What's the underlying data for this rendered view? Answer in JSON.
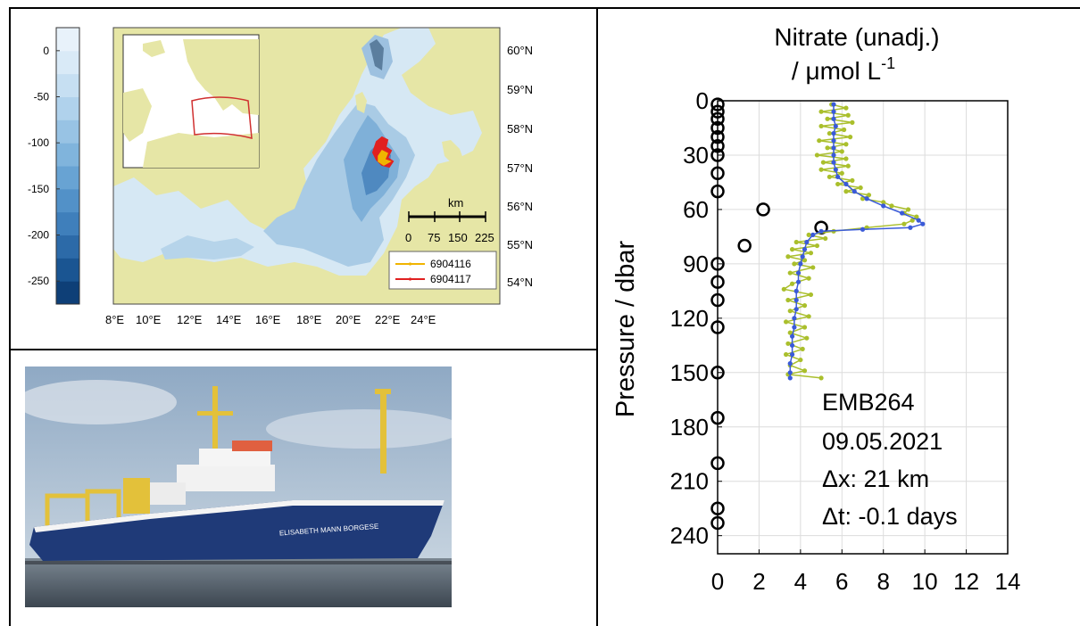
{
  "map": {
    "colorbar_ticks": [
      "0",
      "-50",
      "-100",
      "-150",
      "-200",
      "-250"
    ],
    "colorbar_values": [
      0,
      -50,
      -100,
      -150,
      -200,
      -250
    ],
    "colorbar_range": [
      -275,
      25
    ],
    "colorbar_colors": [
      "#0e3f77",
      "#1a5592",
      "#2c6aa8",
      "#3f7fbb",
      "#5291c8",
      "#68a3d3",
      "#80b4dc",
      "#98c3e4",
      "#b0d2ec",
      "#c6dff2",
      "#d9eaf7",
      "#e8f2fa"
    ],
    "lat_labels": [
      "60°N",
      "59°N",
      "58°N",
      "57°N",
      "56°N",
      "55°N",
      "54°N"
    ],
    "lon_labels": [
      "8°E",
      "10°E",
      "12°E",
      "14°E",
      "16°E",
      "18°E",
      "20°E",
      "22°E",
      "24°E"
    ],
    "scalebar_title": "km",
    "scalebar_ticks": [
      "0",
      "75",
      "150",
      "225"
    ],
    "legend": [
      {
        "label": "6904116",
        "color": "#f0b400"
      },
      {
        "label": "6904117",
        "color": "#e02020"
      }
    ],
    "land_color": "#e6e6a6",
    "water_color": "#d6e8f4"
  },
  "photo": {
    "ship_name": "ELISABETH MANN BORGESE",
    "hull_color": "#1f3a78",
    "sky_color": "#a9bfd4",
    "sea_color": "#5e6c78"
  },
  "profile": {
    "title_line1": "Nitrate (unadj.)",
    "title_line2": "/ μmol L",
    "title_sup": "-1",
    "ylabel": "Pressure / dbar",
    "annotations": [
      "EMB264",
      "09.05.2021",
      "Δx: 21 km",
      "Δt: -0.1 days"
    ]
  },
  "chart_data": {
    "type": "scatter",
    "title": "Nitrate (unadj.) / μmol L-1",
    "xlabel": "",
    "ylabel": "Pressure / dbar",
    "xlim": [
      0,
      14
    ],
    "ylim": [
      250,
      0
    ],
    "y_reversed": true,
    "grid": true,
    "xticks": [
      0,
      2,
      4,
      6,
      8,
      10,
      12,
      14
    ],
    "yticks": [
      0,
      30,
      60,
      90,
      120,
      150,
      180,
      210,
      240
    ],
    "series": [
      {
        "marker": "open-circle",
        "color": "#000000",
        "points": [
          [
            0,
            2
          ],
          [
            0,
            6
          ],
          [
            0,
            10
          ],
          [
            0,
            15
          ],
          [
            0,
            20
          ],
          [
            0,
            25
          ],
          [
            0,
            30
          ],
          [
            0,
            40
          ],
          [
            0,
            50
          ],
          [
            2.2,
            60
          ],
          [
            5,
            70
          ],
          [
            1.3,
            80
          ],
          [
            0,
            90
          ],
          [
            0,
            100
          ],
          [
            0,
            110
          ],
          [
            0,
            125
          ],
          [
            0,
            150
          ],
          [
            0,
            175
          ],
          [
            0,
            200
          ],
          [
            0,
            225
          ],
          [
            0,
            233
          ]
        ]
      },
      {
        "marker": "dot-line",
        "color": "#aabf2c",
        "points": [
          [
            5.5,
            2
          ],
          [
            6.2,
            4
          ],
          [
            5.0,
            6
          ],
          [
            6.3,
            8
          ],
          [
            5.3,
            10
          ],
          [
            6.5,
            12
          ],
          [
            5.0,
            14
          ],
          [
            6.1,
            16
          ],
          [
            5.4,
            18
          ],
          [
            6.4,
            20
          ],
          [
            4.9,
            22
          ],
          [
            6.2,
            24
          ],
          [
            5.3,
            26
          ],
          [
            6.0,
            28
          ],
          [
            4.8,
            30
          ],
          [
            6.2,
            32
          ],
          [
            5.1,
            34
          ],
          [
            6.3,
            36
          ],
          [
            5.0,
            38
          ],
          [
            6.0,
            40
          ],
          [
            5.4,
            42
          ],
          [
            6.5,
            44
          ],
          [
            5.8,
            46
          ],
          [
            6.9,
            48
          ],
          [
            6.2,
            50
          ],
          [
            7.3,
            52
          ],
          [
            7.0,
            54
          ],
          [
            8.0,
            56
          ],
          [
            8.4,
            58
          ],
          [
            9.2,
            60
          ],
          [
            9.0,
            62
          ],
          [
            9.6,
            64
          ],
          [
            9.4,
            66
          ],
          [
            9.0,
            68
          ],
          [
            7.2,
            70
          ],
          [
            5.6,
            72
          ],
          [
            4.4,
            74
          ],
          [
            5.2,
            76
          ],
          [
            3.8,
            78
          ],
          [
            4.8,
            80
          ],
          [
            3.6,
            82
          ],
          [
            4.5,
            84
          ],
          [
            3.4,
            86
          ],
          [
            4.2,
            88
          ],
          [
            3.7,
            90
          ],
          [
            4.6,
            92
          ],
          [
            3.5,
            95
          ],
          [
            4.4,
            98
          ],
          [
            3.6,
            101
          ],
          [
            3.2,
            104
          ],
          [
            4.5,
            107
          ],
          [
            3.4,
            110
          ],
          [
            4.2,
            113
          ],
          [
            3.5,
            116
          ],
          [
            4.4,
            119
          ],
          [
            3.3,
            122
          ],
          [
            4.2,
            125
          ],
          [
            3.5,
            128
          ],
          [
            4.3,
            131
          ],
          [
            3.4,
            134
          ],
          [
            4.1,
            137
          ],
          [
            3.3,
            140
          ],
          [
            4.0,
            143
          ],
          [
            3.5,
            146
          ],
          [
            4.2,
            149
          ],
          [
            3.4,
            151
          ],
          [
            5.0,
            153
          ]
        ]
      },
      {
        "marker": "dot-line",
        "color": "#3a5ad8",
        "points": [
          [
            5.6,
            2
          ],
          [
            5.6,
            6
          ],
          [
            5.6,
            10
          ],
          [
            5.7,
            14
          ],
          [
            5.6,
            18
          ],
          [
            5.6,
            22
          ],
          [
            5.6,
            26
          ],
          [
            5.6,
            30
          ],
          [
            5.6,
            34
          ],
          [
            5.7,
            38
          ],
          [
            5.8,
            42
          ],
          [
            6.2,
            46
          ],
          [
            6.6,
            50
          ],
          [
            7.2,
            54
          ],
          [
            8.0,
            58
          ],
          [
            8.9,
            62
          ],
          [
            9.7,
            66
          ],
          [
            9.9,
            68
          ],
          [
            9.3,
            70
          ],
          [
            7.0,
            71
          ],
          [
            5.0,
            72
          ],
          [
            4.6,
            74
          ],
          [
            4.3,
            78
          ],
          [
            4.2,
            82
          ],
          [
            4.1,
            86
          ],
          [
            4.0,
            90
          ],
          [
            3.9,
            95
          ],
          [
            3.9,
            100
          ],
          [
            3.8,
            105
          ],
          [
            3.8,
            110
          ],
          [
            3.8,
            115
          ],
          [
            3.7,
            120
          ],
          [
            3.7,
            125
          ],
          [
            3.6,
            130
          ],
          [
            3.6,
            135
          ],
          [
            3.6,
            140
          ],
          [
            3.5,
            145
          ],
          [
            3.5,
            150
          ],
          [
            3.5,
            153
          ]
        ]
      }
    ]
  }
}
